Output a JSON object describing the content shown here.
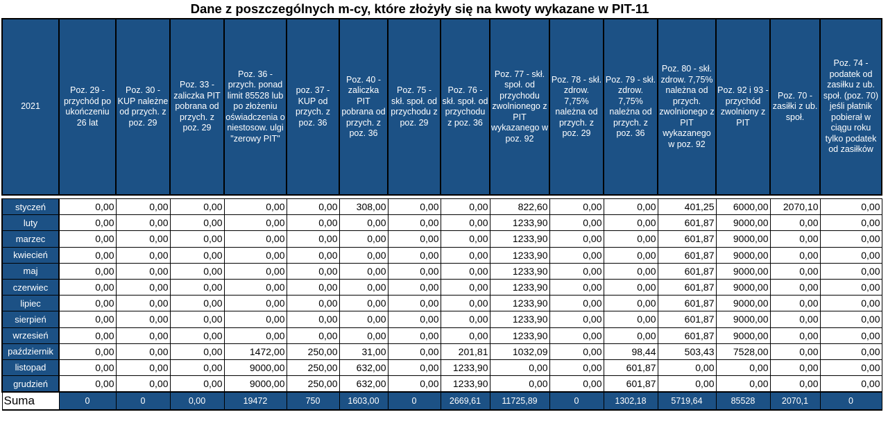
{
  "title": "Dane z poszczególnych m-cy, które złożyły się na kwoty wykazane w PIT-11",
  "year_label": "2021",
  "columns": [
    "Poz. 29 - przychód po ukończeniu 26 lat",
    "Poz. 30 - KUP należne od przych. z poz. 29",
    "Poz. 33 - zaliczka PIT pobrana od przych. z poz. 29",
    "Poz. 36 - przych. ponad limit 85528 lub po złożeniu oświadczenia o niestosow. ulgi \"zerowy PIT\"",
    "poz. 37 - KUP od przych. z poz. 36",
    "Poz. 40 - zaliczka PIT pobrana od przych. z poz. 36",
    "Poz. 75 - skł. społ. od przychodu z poz. 29",
    "Poz. 76 - skł. społ. od przychodu z poz. 36",
    "Poz. 77 - skł. społ. od przychodu zwolnionego z PIT wykazanego w poz. 92",
    "Poz. 78 - skł. zdrow. 7,75% należna od przych. z poz. 29",
    "Poz. 79 - skł. zdrow. 7,75% należna od przych. z poz. 36",
    "Poz. 80 - skł. zdrow. 7,75% należna od przych. zwolnionego z PIT wykazanego w poz. 92",
    "Poz. 92 i 93 - przychód zwolniony z PIT",
    "Poz. 70 - zasiłki z ub. społ.",
    "Poz. 74 - podatek od zasiłku z ub. społ. (poz. 70) jeśli płatnik pobierał w ciągu roku tylko podatek od zasiłków"
  ],
  "rows": [
    {
      "month": "styczeń",
      "values": [
        "0,00",
        "0,00",
        "0,00",
        "0,00",
        "0,00",
        "308,00",
        "0,00",
        "0,00",
        "822,60",
        "0,00",
        "0,00",
        "401,25",
        "6000,00",
        "2070,10",
        "0,00"
      ]
    },
    {
      "month": "luty",
      "values": [
        "0,00",
        "0,00",
        "0,00",
        "0,00",
        "0,00",
        "0,00",
        "0,00",
        "0,00",
        "1233,90",
        "0,00",
        "0,00",
        "601,87",
        "9000,00",
        "0,00",
        "0,00"
      ]
    },
    {
      "month": "marzec",
      "values": [
        "0,00",
        "0,00",
        "0,00",
        "0,00",
        "0,00",
        "0,00",
        "0,00",
        "0,00",
        "1233,90",
        "0,00",
        "0,00",
        "601,87",
        "9000,00",
        "0,00",
        "0,00"
      ]
    },
    {
      "month": "kwiecień",
      "values": [
        "0,00",
        "0,00",
        "0,00",
        "0,00",
        "0,00",
        "0,00",
        "0,00",
        "0,00",
        "1233,90",
        "0,00",
        "0,00",
        "601,87",
        "9000,00",
        "0,00",
        "0,00"
      ]
    },
    {
      "month": "maj",
      "values": [
        "0,00",
        "0,00",
        "0,00",
        "0,00",
        "0,00",
        "0,00",
        "0,00",
        "0,00",
        "1233,90",
        "0,00",
        "0,00",
        "601,87",
        "9000,00",
        "0,00",
        "0,00"
      ]
    },
    {
      "month": "czerwiec",
      "values": [
        "0,00",
        "0,00",
        "0,00",
        "0,00",
        "0,00",
        "0,00",
        "0,00",
        "0,00",
        "1233,90",
        "0,00",
        "0,00",
        "601,87",
        "9000,00",
        "0,00",
        "0,00"
      ]
    },
    {
      "month": "lipiec",
      "values": [
        "0,00",
        "0,00",
        "0,00",
        "0,00",
        "0,00",
        "0,00",
        "0,00",
        "0,00",
        "1233,90",
        "0,00",
        "0,00",
        "601,87",
        "9000,00",
        "0,00",
        "0,00"
      ]
    },
    {
      "month": "sierpień",
      "values": [
        "0,00",
        "0,00",
        "0,00",
        "0,00",
        "0,00",
        "0,00",
        "0,00",
        "0,00",
        "1233,90",
        "0,00",
        "0,00",
        "601,87",
        "9000,00",
        "0,00",
        "0,00"
      ]
    },
    {
      "month": "wrzesień",
      "values": [
        "0,00",
        "0,00",
        "0,00",
        "0,00",
        "0,00",
        "0,00",
        "0,00",
        "0,00",
        "1233,90",
        "0,00",
        "0,00",
        "601,87",
        "9000,00",
        "0,00",
        "0,00"
      ]
    },
    {
      "month": "październik",
      "values": [
        "0,00",
        "0,00",
        "0,00",
        "1472,00",
        "250,00",
        "31,00",
        "0,00",
        "201,81",
        "1032,09",
        "0,00",
        "98,44",
        "503,43",
        "7528,00",
        "0,00",
        "0,00"
      ]
    },
    {
      "month": "listopad",
      "values": [
        "0,00",
        "0,00",
        "0,00",
        "9000,00",
        "250,00",
        "632,00",
        "0,00",
        "1233,90",
        "0,00",
        "0,00",
        "601,87",
        "0,00",
        "0,00",
        "0,00",
        "0,00"
      ]
    },
    {
      "month": "grudzień",
      "values": [
        "0,00",
        "0,00",
        "0,00",
        "9000,00",
        "250,00",
        "632,00",
        "0,00",
        "1233,90",
        "0,00",
        "0,00",
        "601,87",
        "0,00",
        "0,00",
        "0,00",
        "0,00"
      ]
    }
  ],
  "sum": {
    "label": "Suma",
    "values": [
      "0",
      "0",
      "0,00",
      "19472",
      "750",
      "1603,00",
      "0",
      "2669,61",
      "11725,89",
      "0",
      "1302,18",
      "5719,64",
      "85528",
      "2070,1",
      "0"
    ]
  },
  "colors": {
    "header_bg": "#1c5185",
    "header_text": "#ffffff",
    "grid": "#000000"
  }
}
